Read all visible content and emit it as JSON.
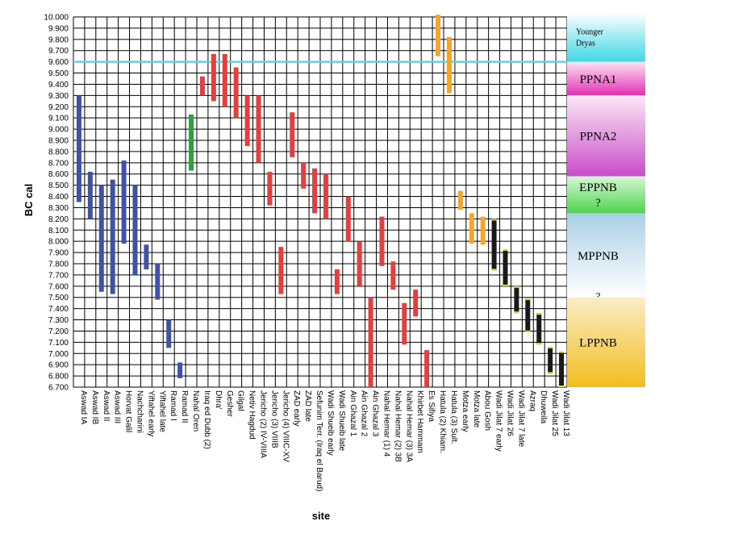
{
  "chart_data": {
    "type": "range-bar",
    "xlabel": "site",
    "ylabel": "BC cal",
    "ylim": [
      6700,
      10000
    ],
    "ytick_step": 100,
    "ytick_labels": [
      "10.000",
      "9.900",
      "9.800",
      "9.700",
      "9.600",
      "9.500",
      "9.400",
      "9.300",
      "9.200",
      "9.100",
      "9.000",
      "8.900",
      "8.800",
      "8.700",
      "8.600",
      "8.500",
      "8.400",
      "8.300",
      "8.200",
      "8.100",
      "8.000",
      "7.900",
      "7.800",
      "7.700",
      "7.600",
      "7.500",
      "7.400",
      "7.300",
      "7.200",
      "7.100",
      "7.000",
      "6.900",
      "6.800",
      "6.700"
    ],
    "grid": true,
    "reference_line": {
      "value": 9600,
      "color": "#5fd3e3"
    },
    "categories": [
      "Aswad IA",
      "Aswad IB",
      "Aswad II",
      "Aswad III",
      "Horvat Galil",
      "Nachcharini",
      "Yiftahel early",
      "Yiftahel late",
      "Ramad I",
      "Ramad II",
      "Nahal Oren",
      "Iraq ed Dubb (2)",
      "Dhra'",
      "Gesher",
      "Gilgal",
      "Netiv Hagdud",
      "Jericho (2) IV-VIIIA",
      "Jericho (3) VIIIB",
      "Jericho (4) VIIIC-XV",
      "ZAD early",
      "ZAD late",
      "Sefunim Terr. (Iraq el Barud)",
      "Wadi Shueib early",
      "Wadi Shueib late",
      "Ain Ghazal 1",
      "Ain Ghazal 2",
      "Ain Ghazal 3",
      "Nahal Hemar (1) 4",
      "Nahal Hemar (2) 3B",
      "Nahal Hemar (3) 3A",
      "Khirbet Hammam",
      "Es Sifiya",
      "Hatula (2) Khiam.",
      "Hatula (3) Sult.",
      "Motza early",
      "Motza late",
      "Abou Gosh",
      "Wadi Jilat 7 early",
      "Wadi Jilat 26",
      "Wadi Jilat 7 late",
      "Azraq",
      "Dhuweila",
      "Wadi Jilat 25",
      "Wadi Jilat 13"
    ],
    "series": [
      {
        "color": "#3f51a8",
        "bars": [
          {
            "slot": 0,
            "from": 8350,
            "to": 9300
          },
          {
            "slot": 1,
            "from": 8200,
            "to": 8620
          },
          {
            "slot": 2,
            "from": 7550,
            "to": 8500
          },
          {
            "slot": 3,
            "from": 7530,
            "to": 8550
          },
          {
            "slot": 4,
            "from": 7980,
            "to": 8720
          },
          {
            "slot": 5,
            "from": 7700,
            "to": 8500
          },
          {
            "slot": 6,
            "from": 7750,
            "to": 7970
          },
          {
            "slot": 7,
            "from": 7480,
            "to": 7800
          },
          {
            "slot": 8,
            "from": 7050,
            "to": 7300
          },
          {
            "slot": 9,
            "from": 6780,
            "to": 6920
          }
        ]
      },
      {
        "color": "#2e9e3f",
        "bars": [
          {
            "slot": 10,
            "from": 8630,
            "to": 9130
          }
        ]
      },
      {
        "color": "#e53e3e",
        "bars": [
          {
            "slot": 11,
            "from": 9300,
            "to": 9470
          },
          {
            "slot": 12,
            "from": 9250,
            "to": 9670
          },
          {
            "slot": 13,
            "from": 9200,
            "to": 9670
          },
          {
            "slot": 14,
            "from": 9100,
            "to": 9550
          },
          {
            "slot": 15,
            "from": 8850,
            "to": 9300
          },
          {
            "slot": 16,
            "from": 8700,
            "to": 9300
          },
          {
            "slot": 17,
            "from": 8320,
            "to": 8620
          },
          {
            "slot": 18,
            "from": 7530,
            "to": 7950
          },
          {
            "slot": 19,
            "from": 8750,
            "to": 9150
          },
          {
            "slot": 20,
            "from": 8470,
            "to": 8700
          },
          {
            "slot": 21,
            "from": 8250,
            "to": 8650
          },
          {
            "slot": 22,
            "from": 8200,
            "to": 8600
          },
          {
            "slot": 23,
            "from": 7530,
            "to": 7750
          },
          {
            "slot": 24,
            "from": 8000,
            "to": 8400
          },
          {
            "slot": 25,
            "from": 7600,
            "to": 8000
          },
          {
            "slot": 26,
            "from": 6700,
            "to": 7500
          },
          {
            "slot": 27,
            "from": 7780,
            "to": 8220
          },
          {
            "slot": 28,
            "from": 7570,
            "to": 7820
          },
          {
            "slot": 29,
            "from": 7080,
            "to": 7450
          },
          {
            "slot": 30,
            "from": 7330,
            "to": 7570
          },
          {
            "slot": 31,
            "from": 6700,
            "to": 7030
          }
        ]
      },
      {
        "color": "#f3a52c",
        "bars": [
          {
            "slot": 32,
            "from": 9650,
            "to": 10020
          },
          {
            "slot": 33,
            "from": 9320,
            "to": 9820
          },
          {
            "slot": 34,
            "from": 8280,
            "to": 8450
          },
          {
            "slot": 35,
            "from": 7980,
            "to": 8250
          },
          {
            "slot": 36,
            "from": 7970,
            "to": 8220
          }
        ]
      },
      {
        "color": "#1a1a1a",
        "accent": "#e8dc2a",
        "bars": [
          {
            "slot": 37,
            "from": 7740,
            "to": 8200
          },
          {
            "slot": 38,
            "from": 7600,
            "to": 7930
          },
          {
            "slot": 39,
            "from": 7360,
            "to": 7600
          },
          {
            "slot": 40,
            "from": 7190,
            "to": 7490
          },
          {
            "slot": 41,
            "from": 7080,
            "to": 7360
          },
          {
            "slot": 42,
            "from": 6820,
            "to": 7060
          },
          {
            "slot": 43,
            "from": 6700,
            "to": 7020
          }
        ]
      }
    ],
    "periods": [
      {
        "lines": [
          "Younger",
          "Dryas"
        ],
        "from": 9600,
        "to": 10050,
        "gradient": [
          "#ffffff",
          "#3fd8e6"
        ],
        "size": 10,
        "align": "left"
      },
      {
        "lines": [
          "PPNA1"
        ],
        "from": 9300,
        "to": 9600,
        "gradient": [
          "#fce4f4",
          "#e62fb2"
        ],
        "size": 15,
        "align": "center"
      },
      {
        "lines": [
          "PPNA2"
        ],
        "from": 8580,
        "to": 9300,
        "gradient": [
          "#fce8f6",
          "#c94cc9"
        ],
        "size": 15,
        "align": "center"
      },
      {
        "lines": [
          "EPPNB",
          "?"
        ],
        "from": 8250,
        "to": 8580,
        "gradient": [
          "#d6f7d6",
          "#4ed44e"
        ],
        "size": 15,
        "align": "center"
      },
      {
        "lines": [
          "MPPNB"
        ],
        "from": 7500,
        "to": 8250,
        "gradient": [
          "#aacfe6",
          "#ffffff"
        ],
        "size": 15,
        "align": "center"
      },
      {
        "lines": [
          "?"
        ],
        "from": 7500,
        "to": 7500,
        "gradient": null,
        "size": 13,
        "align": "center"
      },
      {
        "lines": [
          "LPPNB"
        ],
        "from": 6700,
        "to": 7500,
        "gradient": [
          "#fbedc8",
          "#f2bd1d"
        ],
        "size": 15,
        "align": "center"
      }
    ]
  }
}
